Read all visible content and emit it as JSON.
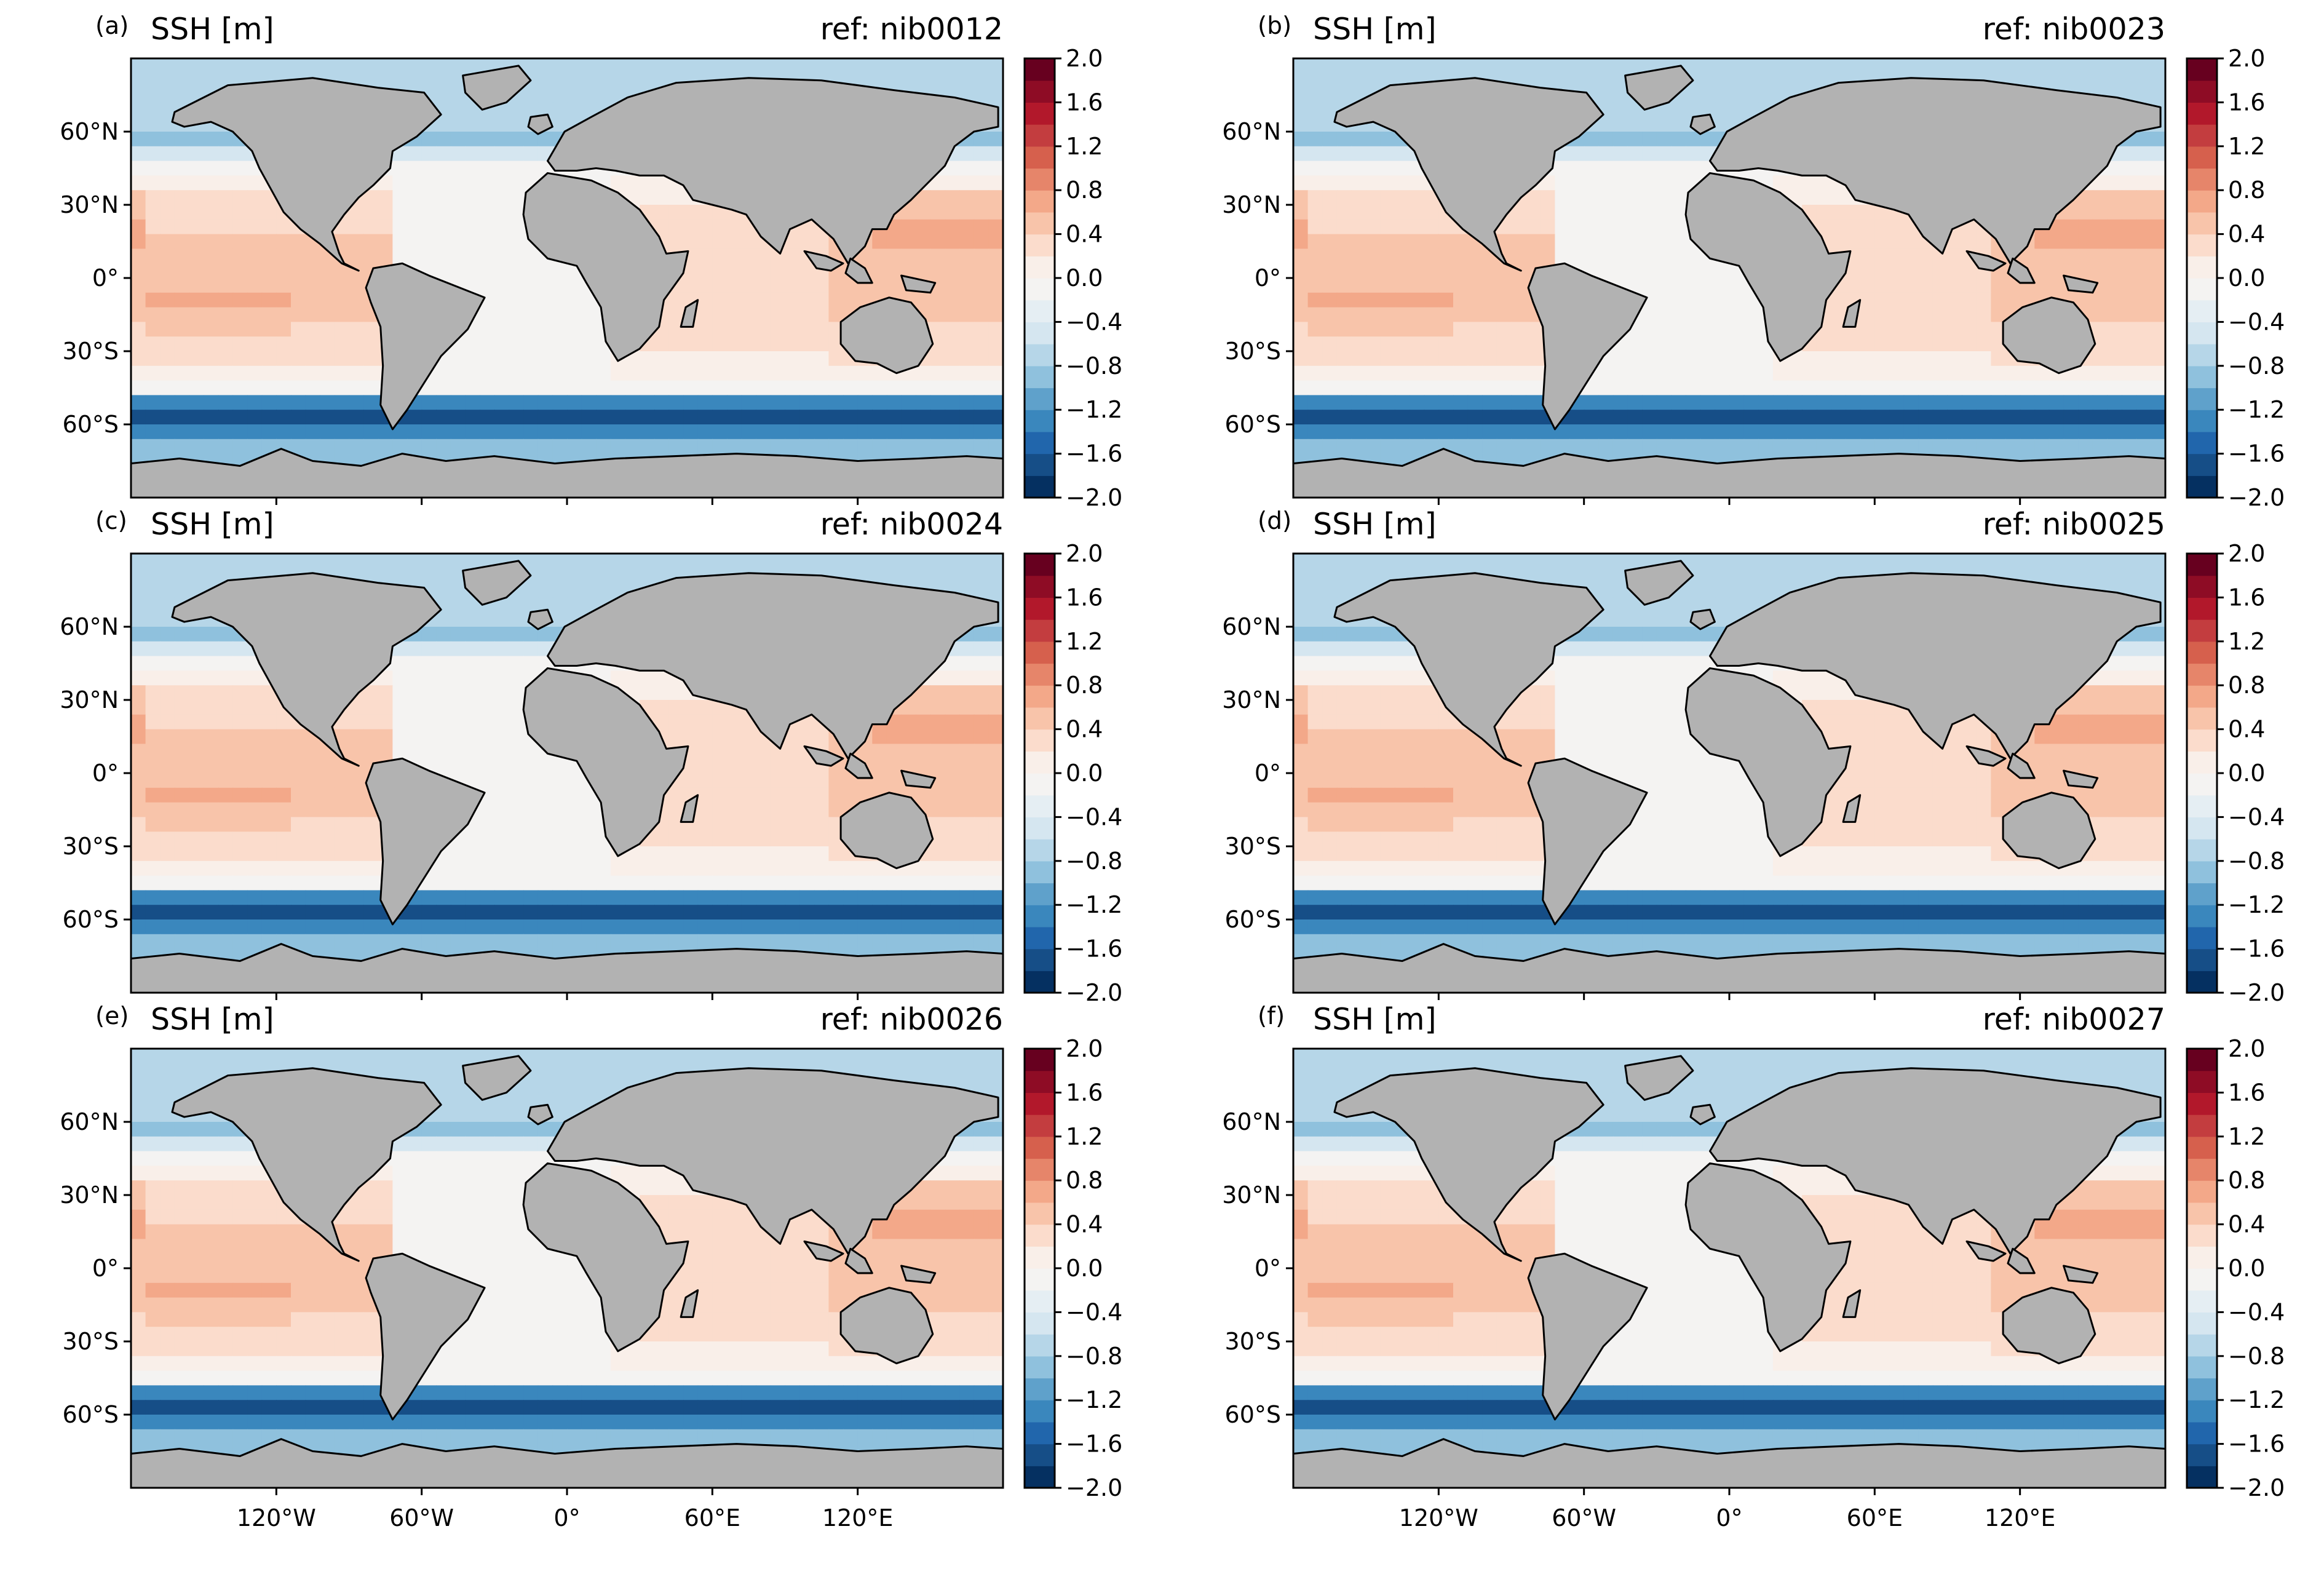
{
  "figure": {
    "panels": [
      {
        "letter": "(a)",
        "variable": "SSH [m]",
        "ref": "ref: nib0012"
      },
      {
        "letter": "(b)",
        "variable": "SSH [m]",
        "ref": "ref: nib0023"
      },
      {
        "letter": "(c)",
        "variable": "SSH [m]",
        "ref": "ref: nib0024"
      },
      {
        "letter": "(d)",
        "variable": "SSH [m]",
        "ref": "ref: nib0025"
      },
      {
        "letter": "(e)",
        "variable": "SSH [m]",
        "ref": "ref: nib0026"
      },
      {
        "letter": "(f)",
        "variable": "SSH [m]",
        "ref": "ref: nib0027"
      }
    ],
    "lat_ticks": [
      "60°N",
      "30°N",
      "0°",
      "30°S",
      "60°S"
    ],
    "lat_values": [
      60,
      30,
      0,
      -30,
      -60
    ],
    "lon_ticks": [
      "120°W",
      "60°W",
      "0°",
      "60°E",
      "120°E"
    ],
    "lon_values": [
      -120,
      -60,
      0,
      60,
      120
    ],
    "colorbar": {
      "min": -2.0,
      "max": 2.0,
      "step": 0.2,
      "tick_labels": [
        "2.0",
        "1.6",
        "1.2",
        "0.8",
        "0.4",
        "0.0",
        "−0.4",
        "−0.8",
        "−1.2",
        "−1.6",
        "−2.0"
      ],
      "colors": [
        "#053061",
        "#164e87",
        "#2166ac",
        "#3a87bd",
        "#5fa1cb",
        "#8fc1dd",
        "#b6d6e8",
        "#d5e6f0",
        "#e5eef3",
        "#f4f3f2",
        "#f9efe9",
        "#fbdccc",
        "#f8c4aa",
        "#f3a889",
        "#e6856a",
        "#d6604d",
        "#c33d3f",
        "#b2182b",
        "#8e0c25",
        "#67001f"
      ]
    },
    "land_color": "#b2b2b2"
  }
}
